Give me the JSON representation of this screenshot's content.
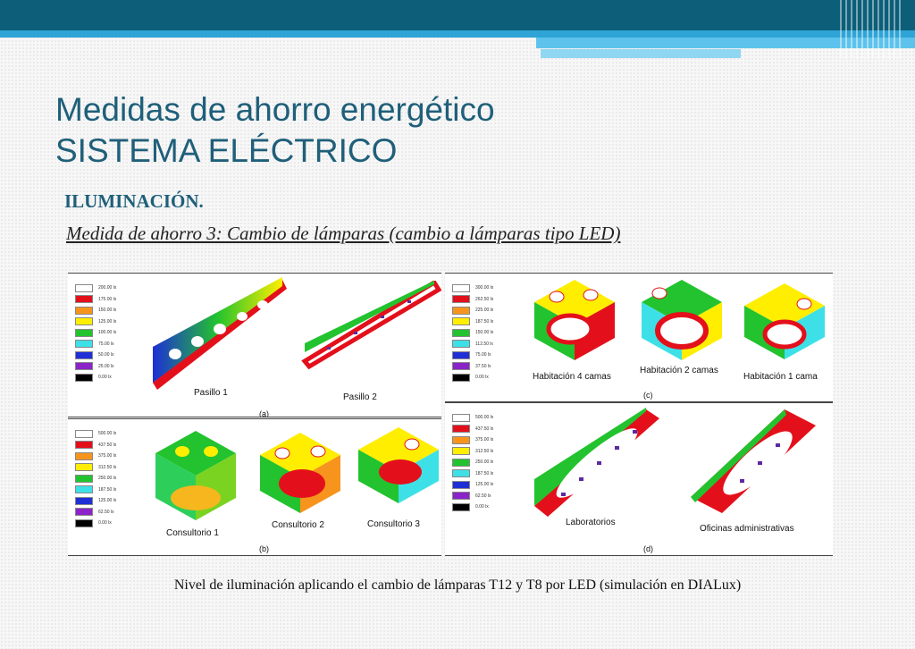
{
  "slide": {
    "title_line1": "Medidas de ahorro energético",
    "title_line2": "SISTEMA ELÉCTRICO",
    "subheading": "ILUMINACIÓN.",
    "measure": "Medida de ahorro 3: Cambio de lámparas (cambio a lámparas tipo LED)",
    "caption": "Nivel de iluminación aplicando el cambio de lámparas T12 y T8 por LED (simulación en DIALux)"
  },
  "legend_colors": [
    "#ffffff",
    "#e3101b",
    "#f7941d",
    "#ffee00",
    "#22c32e",
    "#3ee0e8",
    "#1e2fd6",
    "#8a24c9",
    "#000000"
  ],
  "panels": {
    "a": {
      "tag": "(a)",
      "scale": [
        "200.00",
        "175.00",
        "150.00",
        "125.00",
        "100.00",
        "75.00",
        "50.00",
        "25.00",
        "0.00"
      ],
      "labels": [
        "Pasillo 1",
        "Pasillo 2"
      ]
    },
    "b": {
      "tag": "(b)",
      "scale": [
        "500.00",
        "437.50",
        "375.00",
        "312.50",
        "250.00",
        "187.50",
        "125.00",
        "62.50",
        "0.00"
      ],
      "labels": [
        "Consultorio 1",
        "Consultorio 2",
        "Consultorio 3"
      ]
    },
    "c": {
      "tag": "(c)",
      "scale": [
        "300.00",
        "262.50",
        "225.00",
        "187.50",
        "150.00",
        "112.50",
        "75.00",
        "37.50",
        "0.00"
      ],
      "labels": [
        "Habitación 4 camas",
        "Habitación 2 camas",
        "Habitación 1 cama"
      ]
    },
    "d": {
      "tag": "(d)",
      "scale": [
        "500.00",
        "437.50",
        "375.00",
        "312.50",
        "250.00",
        "187.50",
        "125.00",
        "62.50",
        "0.00"
      ],
      "labels": [
        "Laboratorios",
        "Oficinas administrativas"
      ]
    }
  },
  "unit": "lx"
}
